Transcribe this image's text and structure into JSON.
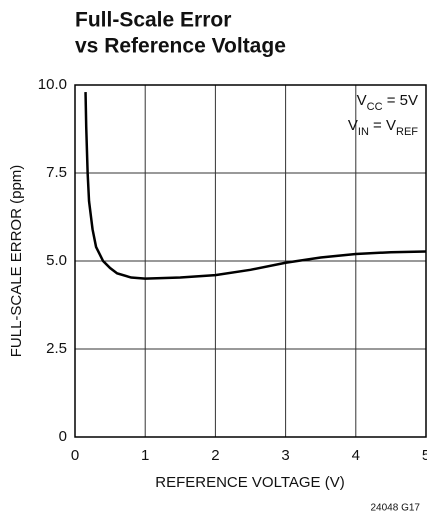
{
  "chart_data": {
    "type": "line",
    "title": [
      "Full-Scale Error",
      "vs Reference Voltage"
    ],
    "xlabel": "REFERENCE VOLTAGE (V)",
    "ylabel": "FULL-SCALE ERROR (ppm)",
    "annotations": [
      [
        "V",
        "CC",
        " = 5V"
      ],
      [
        "V",
        "IN",
        " = V",
        "REF"
      ]
    ],
    "figure_id": "24048 G17",
    "x": [
      0.15,
      0.16,
      0.18,
      0.2,
      0.25,
      0.3,
      0.4,
      0.5,
      0.6,
      0.8,
      1,
      1.5,
      2,
      2.5,
      3,
      3.5,
      4,
      4.5,
      5
    ],
    "series": [
      {
        "color": "#000000",
        "values": [
          9.8,
          8.8,
          7.5,
          6.7,
          5.9,
          5.4,
          5.0,
          4.8,
          4.65,
          4.53,
          4.5,
          4.53,
          4.6,
          4.75,
          4.95,
          5.1,
          5.2,
          5.25,
          5.27
        ]
      }
    ],
    "xlim": [
      0,
      5
    ],
    "xticks": [
      0,
      1,
      2,
      3,
      4,
      5
    ],
    "ylim": [
      0,
      10
    ],
    "yticks": [
      0,
      2.5,
      {
        "value": 5,
        "label": "5.0"
      },
      7.5,
      {
        "value": 10,
        "label": "10.0"
      }
    ],
    "grid": true
  }
}
